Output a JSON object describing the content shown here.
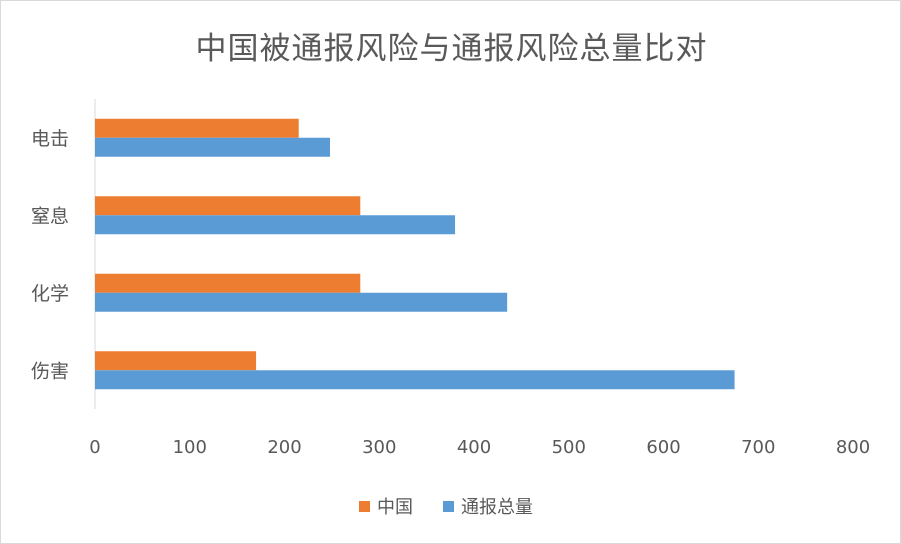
{
  "chart_data": {
    "type": "bar",
    "orientation": "horizontal",
    "title": "中国被通报风险与通报风险总量比对",
    "categories": [
      "电击",
      "窒息",
      "化学",
      "伤害"
    ],
    "series": [
      {
        "name": "中国",
        "color": "#ED7D31",
        "values": [
          215,
          280,
          280,
          170
        ]
      },
      {
        "name": "通报总量",
        "color": "#5B9BD5",
        "values": [
          248,
          380,
          435,
          675
        ]
      }
    ],
    "xlim": [
      0,
      800
    ],
    "xticks": [
      "0",
      "100",
      "200",
      "300",
      "400",
      "500",
      "600",
      "700",
      "800"
    ],
    "grid": false,
    "legend_position": "bottom"
  }
}
